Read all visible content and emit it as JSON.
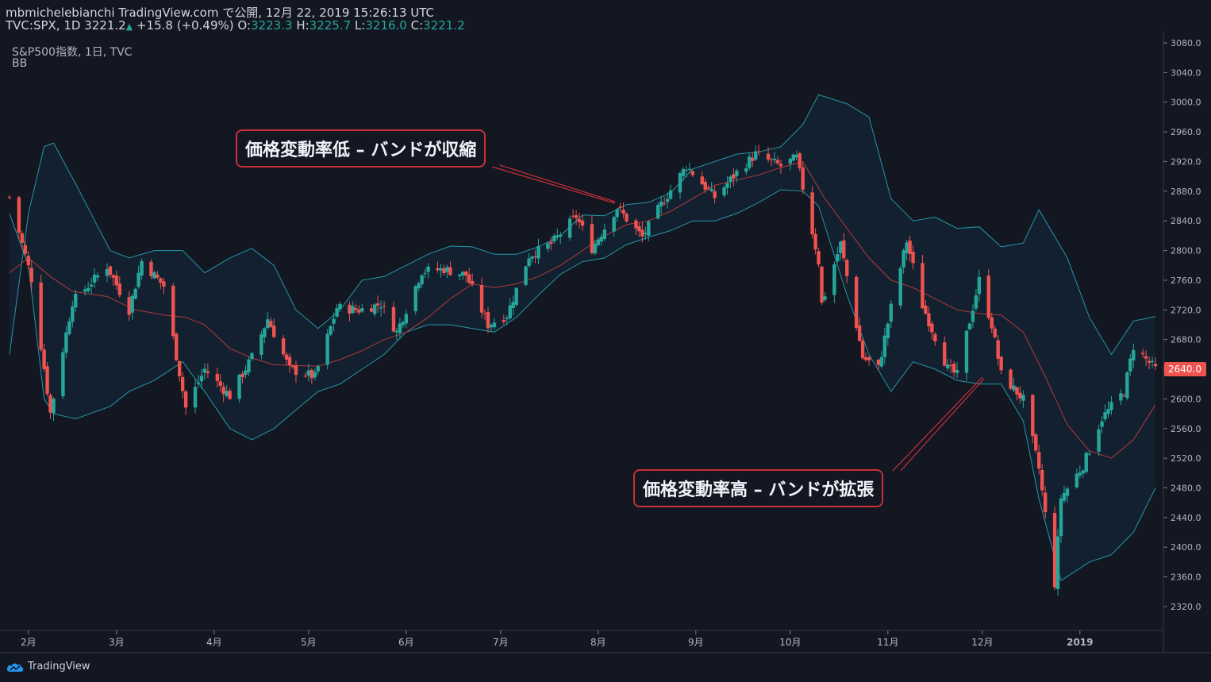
{
  "header": {
    "line1": "mbmichelebianchi TradingView.com で公開, 12月 22, 2019 15:26:13 UTC",
    "symbol": "TVC:SPX, 1D",
    "last": "3221.2",
    "change": "+15.8 (+0.49%)",
    "o_label": "O:",
    "o": "3223.3",
    "h_label": "H:",
    "h": "3225.7",
    "l_label": "L:",
    "l": "3216.0",
    "c_label": "C:",
    "c": "3221.2"
  },
  "legend": {
    "title": "S&P500指数, 1日, TVC",
    "indicator": "BB"
  },
  "annotations": {
    "low": "価格変動率低 – バンドが収縮",
    "high": "価格変動率高 – バンドが拡張"
  },
  "brand": {
    "name": "TradingView"
  },
  "colors": {
    "background": "#131722",
    "up": "#26a69a",
    "down": "#ef5350",
    "band": "#2596a6",
    "basis": "#b33a3a",
    "annotation_border": "#c8303a",
    "price_label": "#ef5350"
  },
  "chart_data": {
    "type": "candlestick",
    "indicator": "Bollinger Bands",
    "ylim": [
      2290,
      3095
    ],
    "y_ticks": [
      3080,
      3040,
      3000,
      2960,
      2920,
      2880,
      2840,
      2800,
      2760,
      2720,
      2680,
      2640,
      2600,
      2560,
      2520,
      2480,
      2440,
      2400,
      2360,
      2320
    ],
    "y_tick_labels": [
      "3080.0",
      "3040.0",
      "3000.0",
      "2960.0",
      "2920.0",
      "2880.0",
      "2840.0",
      "2800.0",
      "2760.0",
      "2720.0",
      "2680.0",
      "2640.0",
      "2600.0",
      "2560.0",
      "2520.0",
      "2480.0",
      "2440.0",
      "2400.0",
      "2360.0",
      "2320.0"
    ],
    "current_price": 2640,
    "current_price_label": "2640.0",
    "x_range": [
      "2018-01-25",
      "2019-01-26"
    ],
    "x_ticks": [
      {
        "date": "2018-02-01",
        "label": "2月"
      },
      {
        "date": "2018-03-01",
        "label": "3月"
      },
      {
        "date": "2018-04-01",
        "label": "4月"
      },
      {
        "date": "2018-05-01",
        "label": "5月"
      },
      {
        "date": "2018-06-01",
        "label": "6月"
      },
      {
        "date": "2018-07-01",
        "label": "7月"
      },
      {
        "date": "2018-08-01",
        "label": "8月"
      },
      {
        "date": "2018-09-01",
        "label": "9月"
      },
      {
        "date": "2018-10-01",
        "label": "10月"
      },
      {
        "date": "2018-11-01",
        "label": "11月"
      },
      {
        "date": "2018-12-01",
        "label": "12月"
      },
      {
        "date": "2019-01-01",
        "label": "2019"
      }
    ],
    "close_path": [
      [
        "2018-01-26",
        2872
      ],
      [
        "2018-02-02",
        2762
      ],
      [
        "2018-02-08",
        2581
      ],
      [
        "2018-02-15",
        2731
      ],
      [
        "2018-02-26",
        2779
      ],
      [
        "2018-03-05",
        2720
      ],
      [
        "2018-03-09",
        2786
      ],
      [
        "2018-03-16",
        2752
      ],
      [
        "2018-03-23",
        2588
      ],
      [
        "2018-03-29",
        2640
      ],
      [
        "2018-04-06",
        2604
      ],
      [
        "2018-04-13",
        2656
      ],
      [
        "2018-04-18",
        2708
      ],
      [
        "2018-04-25",
        2640
      ],
      [
        "2018-05-03",
        2630
      ],
      [
        "2018-05-10",
        2723
      ],
      [
        "2018-05-17",
        2720
      ],
      [
        "2018-05-24",
        2728
      ],
      [
        "2018-05-29",
        2690
      ],
      [
        "2018-06-06",
        2772
      ],
      [
        "2018-06-13",
        2775
      ],
      [
        "2018-06-20",
        2767
      ],
      [
        "2018-06-27",
        2700
      ],
      [
        "2018-07-03",
        2713
      ],
      [
        "2018-07-10",
        2793
      ],
      [
        "2018-07-17",
        2809
      ],
      [
        "2018-07-25",
        2846
      ],
      [
        "2018-07-30",
        2803
      ],
      [
        "2018-08-07",
        2858
      ],
      [
        "2018-08-15",
        2818
      ],
      [
        "2018-08-21",
        2862
      ],
      [
        "2018-08-29",
        2914
      ],
      [
        "2018-09-07",
        2872
      ],
      [
        "2018-09-14",
        2905
      ],
      [
        "2018-09-20",
        2930
      ],
      [
        "2018-09-28",
        2914
      ],
      [
        "2018-10-03",
        2925
      ],
      [
        "2018-10-05",
        2885
      ],
      [
        "2018-10-10",
        2785
      ],
      [
        "2018-10-11",
        2728
      ],
      [
        "2018-10-17",
        2809
      ],
      [
        "2018-10-24",
        2656
      ],
      [
        "2018-10-29",
        2641
      ],
      [
        "2018-11-02",
        2723
      ],
      [
        "2018-11-07",
        2813
      ],
      [
        "2018-11-12",
        2726
      ],
      [
        "2018-11-20",
        2641
      ],
      [
        "2018-11-23",
        2632
      ],
      [
        "2018-11-30",
        2760
      ],
      [
        "2018-12-04",
        2700
      ],
      [
        "2018-12-07",
        2633
      ],
      [
        "2018-12-14",
        2599
      ],
      [
        "2018-12-19",
        2506
      ],
      [
        "2018-12-24",
        2351
      ],
      [
        "2018-12-26",
        2467
      ],
      [
        "2019-01-02",
        2510
      ],
      [
        "2019-01-08",
        2574
      ],
      [
        "2019-01-15",
        2610
      ],
      [
        "2019-01-18",
        2671
      ],
      [
        "2019-01-25",
        2640
      ]
    ],
    "bollinger": {
      "upper": [
        [
          "2018-01-26",
          2660
        ],
        [
          "2018-02-01",
          2850
        ],
        [
          "2018-02-06",
          2940
        ],
        [
          "2018-02-09",
          2945
        ],
        [
          "2018-02-16",
          2890
        ],
        [
          "2018-02-27",
          2800
        ],
        [
          "2018-03-05",
          2790
        ],
        [
          "2018-03-13",
          2800
        ],
        [
          "2018-03-22",
          2800
        ],
        [
          "2018-03-29",
          2770
        ],
        [
          "2018-04-06",
          2790
        ],
        [
          "2018-04-13",
          2803
        ],
        [
          "2018-04-20",
          2780
        ],
        [
          "2018-04-27",
          2720
        ],
        [
          "2018-05-04",
          2695
        ],
        [
          "2018-05-11",
          2720
        ],
        [
          "2018-05-18",
          2760
        ],
        [
          "2018-05-25",
          2765
        ],
        [
          "2018-06-01",
          2780
        ],
        [
          "2018-06-08",
          2795
        ],
        [
          "2018-06-15",
          2806
        ],
        [
          "2018-06-22",
          2805
        ],
        [
          "2018-06-29",
          2795
        ],
        [
          "2018-07-06",
          2795
        ],
        [
          "2018-07-13",
          2805
        ],
        [
          "2018-07-20",
          2820
        ],
        [
          "2018-07-27",
          2848
        ],
        [
          "2018-08-03",
          2847
        ],
        [
          "2018-08-10",
          2862
        ],
        [
          "2018-08-17",
          2865
        ],
        [
          "2018-08-24",
          2878
        ],
        [
          "2018-08-31",
          2910
        ],
        [
          "2018-09-07",
          2920
        ],
        [
          "2018-09-14",
          2930
        ],
        [
          "2018-09-21",
          2933
        ],
        [
          "2018-09-28",
          2940
        ],
        [
          "2018-10-05",
          2970
        ],
        [
          "2018-10-10",
          3010
        ],
        [
          "2018-10-19",
          2998
        ],
        [
          "2018-10-26",
          2980
        ],
        [
          "2018-11-02",
          2870
        ],
        [
          "2018-11-09",
          2840
        ],
        [
          "2018-11-16",
          2845
        ],
        [
          "2018-11-23",
          2830
        ],
        [
          "2018-11-30",
          2832
        ],
        [
          "2018-12-07",
          2805
        ],
        [
          "2018-12-14",
          2810
        ],
        [
          "2018-12-19",
          2855
        ],
        [
          "2018-12-28",
          2790
        ],
        [
          "2019-01-04",
          2710
        ],
        [
          "2019-01-11",
          2660
        ],
        [
          "2019-01-18",
          2705
        ],
        [
          "2019-01-25",
          2711
        ]
      ],
      "basis": [
        [
          "2018-01-26",
          2770
        ],
        [
          "2018-02-01",
          2790
        ],
        [
          "2018-02-08",
          2765
        ],
        [
          "2018-02-15",
          2745
        ],
        [
          "2018-02-26",
          2738
        ],
        [
          "2018-03-07",
          2720
        ],
        [
          "2018-03-16",
          2713
        ],
        [
          "2018-03-23",
          2710
        ],
        [
          "2018-03-29",
          2700
        ],
        [
          "2018-04-06",
          2668
        ],
        [
          "2018-04-13",
          2655
        ],
        [
          "2018-04-20",
          2646
        ],
        [
          "2018-04-27",
          2645
        ],
        [
          "2018-05-04",
          2644
        ],
        [
          "2018-05-11",
          2653
        ],
        [
          "2018-05-18",
          2665
        ],
        [
          "2018-05-25",
          2680
        ],
        [
          "2018-06-01",
          2690
        ],
        [
          "2018-06-08",
          2710
        ],
        [
          "2018-06-15",
          2735
        ],
        [
          "2018-06-22",
          2755
        ],
        [
          "2018-06-29",
          2750
        ],
        [
          "2018-07-06",
          2755
        ],
        [
          "2018-07-13",
          2765
        ],
        [
          "2018-07-20",
          2780
        ],
        [
          "2018-07-27",
          2800
        ],
        [
          "2018-08-03",
          2820
        ],
        [
          "2018-08-10",
          2835
        ],
        [
          "2018-08-17",
          2840
        ],
        [
          "2018-08-24",
          2853
        ],
        [
          "2018-08-31",
          2870
        ],
        [
          "2018-09-07",
          2888
        ],
        [
          "2018-09-14",
          2895
        ],
        [
          "2018-09-21",
          2902
        ],
        [
          "2018-09-28",
          2912
        ],
        [
          "2018-10-05",
          2920
        ],
        [
          "2018-10-12",
          2870
        ],
        [
          "2018-10-19",
          2830
        ],
        [
          "2018-10-26",
          2790
        ],
        [
          "2018-11-02",
          2760
        ],
        [
          "2018-11-09",
          2750
        ],
        [
          "2018-11-16",
          2735
        ],
        [
          "2018-11-23",
          2720
        ],
        [
          "2018-11-30",
          2715
        ],
        [
          "2018-12-07",
          2713
        ],
        [
          "2018-12-14",
          2690
        ],
        [
          "2018-12-21",
          2630
        ],
        [
          "2018-12-28",
          2565
        ],
        [
          "2019-01-04",
          2530
        ],
        [
          "2019-01-11",
          2520
        ],
        [
          "2019-01-18",
          2545
        ],
        [
          "2019-01-25",
          2592
        ]
      ],
      "lower": [
        [
          "2018-01-26",
          2850
        ],
        [
          "2018-02-01",
          2780
        ],
        [
          "2018-02-06",
          2600
        ],
        [
          "2018-02-09",
          2580
        ],
        [
          "2018-02-16",
          2573
        ],
        [
          "2018-02-27",
          2590
        ],
        [
          "2018-03-05",
          2610
        ],
        [
          "2018-03-13",
          2625
        ],
        [
          "2018-03-22",
          2650
        ],
        [
          "2018-03-29",
          2610
        ],
        [
          "2018-04-06",
          2560
        ],
        [
          "2018-04-13",
          2545
        ],
        [
          "2018-04-20",
          2560
        ],
        [
          "2018-04-27",
          2585
        ],
        [
          "2018-05-04",
          2610
        ],
        [
          "2018-05-11",
          2620
        ],
        [
          "2018-05-18",
          2640
        ],
        [
          "2018-05-25",
          2660
        ],
        [
          "2018-06-01",
          2690
        ],
        [
          "2018-06-08",
          2700
        ],
        [
          "2018-06-15",
          2700
        ],
        [
          "2018-06-22",
          2695
        ],
        [
          "2018-06-29",
          2690
        ],
        [
          "2018-07-06",
          2710
        ],
        [
          "2018-07-13",
          2740
        ],
        [
          "2018-07-20",
          2768
        ],
        [
          "2018-07-27",
          2785
        ],
        [
          "2018-08-03",
          2790
        ],
        [
          "2018-08-10",
          2808
        ],
        [
          "2018-08-17",
          2818
        ],
        [
          "2018-08-24",
          2827
        ],
        [
          "2018-08-31",
          2840
        ],
        [
          "2018-09-07",
          2840
        ],
        [
          "2018-09-14",
          2850
        ],
        [
          "2018-09-21",
          2865
        ],
        [
          "2018-09-28",
          2882
        ],
        [
          "2018-10-05",
          2880
        ],
        [
          "2018-10-10",
          2860
        ],
        [
          "2018-10-19",
          2740
        ],
        [
          "2018-10-26",
          2660
        ],
        [
          "2018-11-02",
          2610
        ],
        [
          "2018-11-09",
          2650
        ],
        [
          "2018-11-16",
          2640
        ],
        [
          "2018-11-23",
          2625
        ],
        [
          "2018-11-30",
          2620
        ],
        [
          "2018-12-07",
          2620
        ],
        [
          "2018-12-14",
          2570
        ],
        [
          "2018-12-19",
          2465
        ],
        [
          "2018-12-26",
          2355
        ],
        [
          "2019-01-04",
          2380
        ],
        [
          "2019-01-11",
          2390
        ],
        [
          "2019-01-18",
          2420
        ],
        [
          "2019-01-25",
          2480
        ]
      ]
    }
  }
}
